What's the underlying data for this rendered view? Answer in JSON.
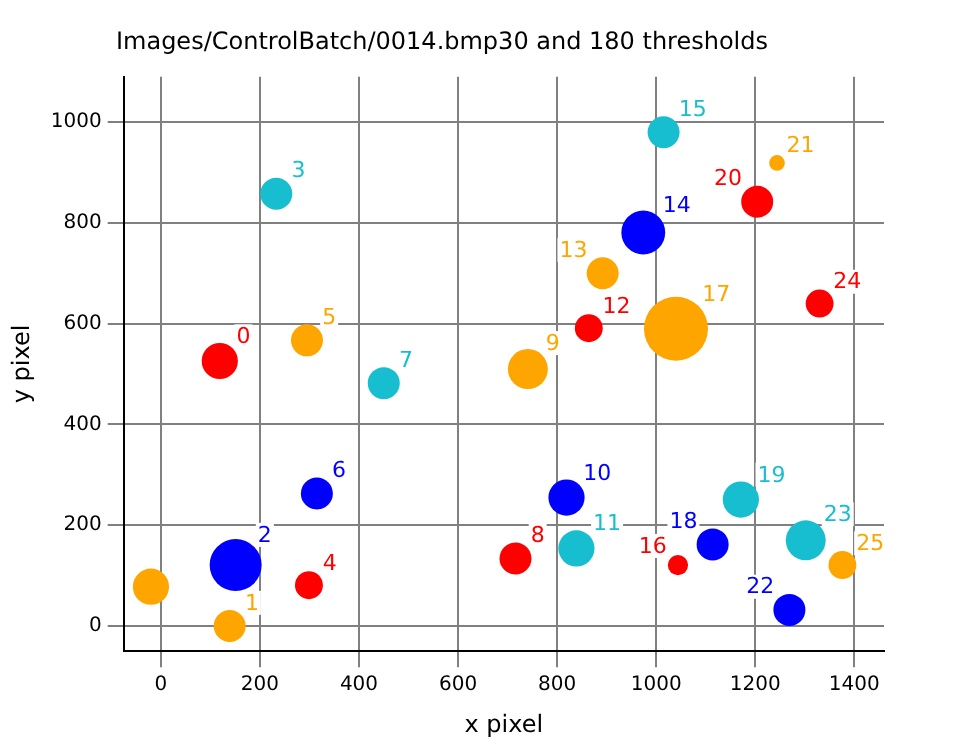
{
  "chart_data": {
    "type": "bubble",
    "title": "Images/ControlBatch/0014.bmp30 and 180 thresholds",
    "xlabel": "x pixel",
    "ylabel": "y pixel",
    "xlim": [
      -75,
      1460
    ],
    "ylim": [
      -50,
      1090
    ],
    "xticks": [
      0,
      200,
      400,
      600,
      800,
      1000,
      1200,
      1400
    ],
    "yticks": [
      0,
      200,
      400,
      600,
      800,
      1000
    ],
    "grid": true,
    "legend": false,
    "series": [
      {
        "color": "#ff0000",
        "x": [
          119,
          299,
          716,
          864,
          1044,
          1204,
          1330
        ],
        "values": [
          526,
          81,
          134,
          591,
          121,
          842,
          640
        ],
        "sizes": [
          0.32,
          0.19,
          0.25,
          0.19,
          0.1,
          0.25,
          0.19
        ]
      },
      {
        "color": "#0000ff",
        "x": [
          151,
          315,
          819,
          974,
          1114,
          1269
        ],
        "values": [
          121,
          263,
          255,
          781,
          162,
          32
        ],
        "sizes": [
          0.66,
          0.25,
          0.32,
          0.47,
          0.25,
          0.25
        ]
      },
      {
        "color": "#17becf",
        "x": [
          233,
          450,
          839,
          1015,
          1171,
          1302
        ],
        "values": [
          858,
          482,
          154,
          980,
          251,
          170
        ],
        "sizes": [
          0.25,
          0.25,
          0.32,
          0.25,
          0.32,
          0.39
        ]
      },
      {
        "color": "#ffa500",
        "x": [
          -20,
          139,
          295,
          741,
          892,
          1040,
          1244,
          1376
        ],
        "values": [
          78,
          0,
          567,
          510,
          700,
          590,
          919,
          121
        ],
        "sizes": [
          0.32,
          0.25,
          0.25,
          0.39,
          0.25,
          1,
          0.06,
          0.19
        ]
      }
    ],
    "annotations": [
      {
        "text": "0",
        "x": 119,
        "y": 526
      },
      {
        "text": "4",
        "x": 299,
        "y": 81
      },
      {
        "text": "8",
        "x": 716,
        "y": 134
      },
      {
        "text": "12",
        "x": 864,
        "y": 591
      },
      {
        "text": "16",
        "x": 1044,
        "y": 121
      },
      {
        "text": "20",
        "x": 1204,
        "y": 842
      },
      {
        "text": "24",
        "x": 1330,
        "y": 640
      },
      {
        "text": "2",
        "x": 151,
        "y": 121
      },
      {
        "text": "6",
        "x": 315,
        "y": 263
      },
      {
        "text": "10",
        "x": 819,
        "y": 255
      },
      {
        "text": "14",
        "x": 974,
        "y": 781
      },
      {
        "text": "18",
        "x": 1114,
        "y": 162
      },
      {
        "text": "22",
        "x": 1269,
        "y": 32
      },
      {
        "text": "3",
        "x": 233,
        "y": 858
      },
      {
        "text": "7",
        "x": 450,
        "y": 482
      },
      {
        "text": "11",
        "x": 839,
        "y": 154
      },
      {
        "text": "15",
        "x": 1015,
        "y": 980
      },
      {
        "text": "19",
        "x": 1171,
        "y": 251
      },
      {
        "text": "23",
        "x": 1302,
        "y": 170
      },
      {
        "text": "1",
        "x": 139,
        "y": 0
      },
      {
        "text": "5",
        "x": 295,
        "y": 567
      },
      {
        "text": "9",
        "x": 741,
        "y": 510
      },
      {
        "text": "13",
        "x": 892,
        "y": 700
      },
      {
        "text": "17",
        "x": 1040,
        "y": 590
      },
      {
        "text": "21",
        "x": 1244,
        "y": 919
      },
      {
        "text": "25",
        "x": 1376,
        "y": 121
      }
    ]
  }
}
